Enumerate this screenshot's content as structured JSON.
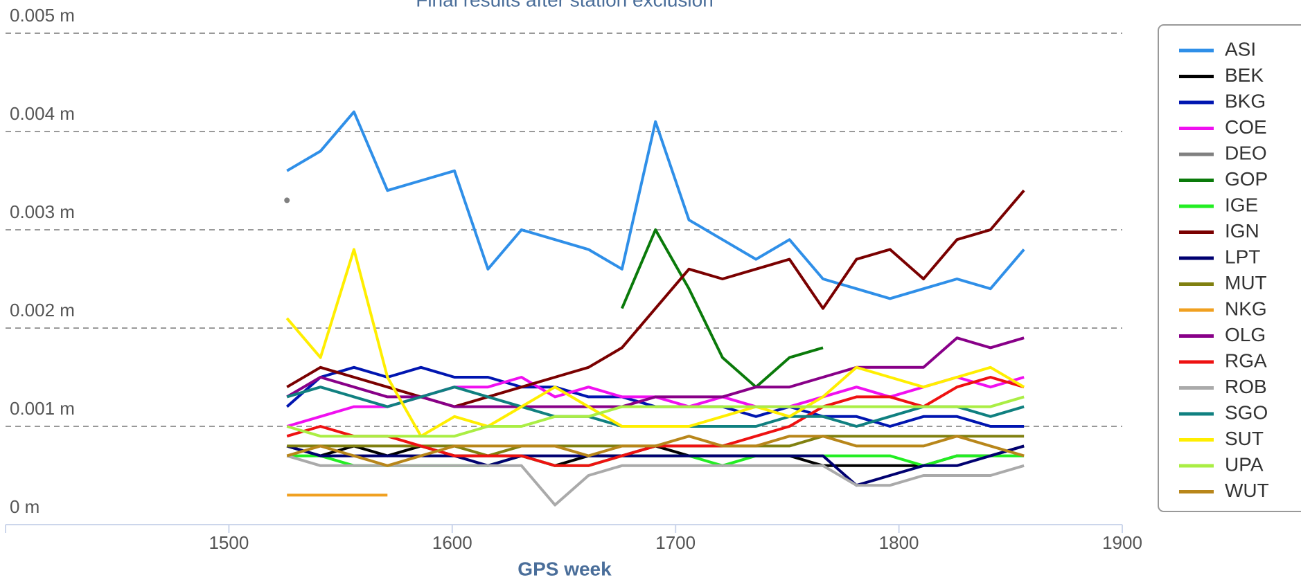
{
  "chart_data": {
    "type": "line",
    "title": "Final results after station exclusion",
    "x_label": "GPS week",
    "x": [
      1526,
      1541,
      1556,
      1571,
      1586,
      1601,
      1616,
      1631,
      1646,
      1661,
      1676,
      1691,
      1706,
      1721,
      1736,
      1751,
      1766,
      1781,
      1796,
      1811,
      1826,
      1841,
      1856
    ],
    "xlim": [
      1400,
      1900
    ],
    "xticks": [
      1500,
      1600,
      1700,
      1800,
      1900
    ],
    "ylim": [
      0,
      0.005
    ],
    "yticks": [
      {
        "value": 0,
        "label": "0 m"
      },
      {
        "value": 0.001,
        "label": "0.001 m"
      },
      {
        "value": 0.002,
        "label": "0.002 m"
      },
      {
        "value": 0.003,
        "label": "0.003 m"
      },
      {
        "value": 0.004,
        "label": "0.004 m"
      },
      {
        "value": 0.005,
        "label": "0.005 m"
      }
    ],
    "grid": true,
    "legend": "right",
    "series": [
      {
        "name": "ASI",
        "color": "#2f8fe8",
        "values": [
          0.0036,
          0.0038,
          0.0042,
          0.0034,
          0.0035,
          0.0036,
          0.0026,
          0.003,
          0.0029,
          0.0028,
          0.0026,
          0.0041,
          0.0031,
          0.0029,
          0.0027,
          0.0029,
          0.0025,
          0.0024,
          0.0023,
          0.0024,
          0.0025,
          0.0024,
          0.0028
        ]
      },
      {
        "name": "BEK",
        "color": "#000000",
        "values": [
          0.0008,
          0.0007,
          0.0008,
          0.0007,
          0.0008,
          0.0007,
          0.0007,
          0.0007,
          0.0006,
          0.0007,
          0.0007,
          0.0008,
          0.0007,
          0.0007,
          0.0007,
          0.0007,
          0.0006,
          0.0006,
          0.0006,
          0.0006,
          0.0007,
          0.0007,
          0.0008
        ]
      },
      {
        "name": "BKG",
        "color": "#0015b0",
        "values": [
          0.0012,
          0.0015,
          0.0016,
          0.0015,
          0.0016,
          0.0015,
          0.0015,
          0.0014,
          0.0014,
          0.0013,
          0.0013,
          0.0012,
          0.0012,
          0.0012,
          0.0011,
          0.0012,
          0.0011,
          0.0011,
          0.001,
          0.0011,
          0.0011,
          0.001,
          0.001
        ]
      },
      {
        "name": "COE",
        "color": "#f010f0",
        "values": [
          0.001,
          0.0011,
          0.0012,
          0.0012,
          0.0013,
          0.0014,
          0.0014,
          0.0015,
          0.0013,
          0.0014,
          0.0013,
          0.0013,
          0.0012,
          0.0013,
          0.0012,
          0.0012,
          0.0013,
          0.0014,
          0.0013,
          0.0014,
          0.0015,
          0.0014,
          0.0015
        ]
      },
      {
        "name": "DEO",
        "color": "#808080",
        "values": [
          0.0033,
          null,
          null,
          null,
          null,
          null,
          null,
          null,
          null,
          null,
          null,
          null,
          null,
          null,
          null,
          null,
          null,
          null,
          null,
          null,
          null,
          null,
          null
        ]
      },
      {
        "name": "GOP",
        "color": "#0a7a0a",
        "values": [
          null,
          null,
          null,
          null,
          null,
          null,
          null,
          null,
          null,
          null,
          0.0022,
          0.003,
          0.0024,
          0.0017,
          0.0014,
          0.0017,
          0.0018,
          null,
          null,
          null,
          null,
          null,
          null
        ]
      },
      {
        "name": "IGE",
        "color": "#22ee22",
        "values": [
          0.0007,
          0.0007,
          0.0006,
          0.0006,
          0.0006,
          0.0006,
          0.0006,
          0.0007,
          0.0006,
          0.0006,
          0.0007,
          0.0007,
          0.0007,
          0.0006,
          0.0007,
          0.0007,
          0.0007,
          0.0007,
          0.0007,
          0.0006,
          0.0007,
          0.0007,
          0.0007
        ]
      },
      {
        "name": "IGN",
        "color": "#7a0000",
        "values": [
          0.0014,
          0.0016,
          0.0015,
          0.0014,
          0.0013,
          0.0012,
          0.0013,
          0.0014,
          0.0015,
          0.0016,
          0.0018,
          0.0022,
          0.0026,
          0.0025,
          0.0026,
          0.0027,
          0.0022,
          0.0027,
          0.0028,
          0.0025,
          0.0029,
          0.003,
          0.0034
        ]
      },
      {
        "name": "LPT",
        "color": "#000070",
        "values": [
          0.0008,
          0.0007,
          0.0007,
          0.0007,
          0.0007,
          0.0007,
          0.0006,
          0.0007,
          0.0007,
          0.0007,
          0.0007,
          0.0007,
          0.0007,
          0.0007,
          0.0007,
          0.0007,
          0.0007,
          0.0004,
          0.0005,
          0.0006,
          0.0006,
          0.0007,
          0.0008
        ]
      },
      {
        "name": "MUT",
        "color": "#808010",
        "values": [
          0.0008,
          0.0008,
          0.0008,
          0.0008,
          0.0008,
          0.0008,
          0.0007,
          0.0008,
          0.0008,
          0.0008,
          0.0008,
          0.0008,
          0.0008,
          0.0008,
          0.0008,
          0.0008,
          0.0009,
          0.0009,
          0.0009,
          0.0009,
          0.0009,
          0.0009,
          0.0009
        ]
      },
      {
        "name": "NKG",
        "color": "#f0a020",
        "values": [
          0.0003,
          0.0003,
          0.0003,
          0.0003,
          null,
          null,
          null,
          null,
          null,
          null,
          null,
          null,
          null,
          null,
          null,
          null,
          null,
          null,
          null,
          null,
          null,
          null,
          null
        ]
      },
      {
        "name": "OLG",
        "color": "#880088",
        "values": [
          0.0013,
          0.0015,
          0.0014,
          0.0013,
          0.0013,
          0.0012,
          0.0012,
          0.0012,
          0.0012,
          0.0012,
          0.0012,
          0.0013,
          0.0013,
          0.0013,
          0.0014,
          0.0014,
          0.0015,
          0.0016,
          0.0016,
          0.0016,
          0.0019,
          0.0018,
          0.0019
        ]
      },
      {
        "name": "RGA",
        "color": "#ee1111",
        "values": [
          0.0009,
          0.001,
          0.0009,
          0.0009,
          0.0008,
          0.0007,
          0.0007,
          0.0007,
          0.0006,
          0.0006,
          0.0007,
          0.0008,
          0.0008,
          0.0008,
          0.0009,
          0.001,
          0.0012,
          0.0013,
          0.0013,
          0.0012,
          0.0014,
          0.0015,
          0.0014
        ]
      },
      {
        "name": "ROB",
        "color": "#aaaaaa",
        "values": [
          0.0007,
          0.0006,
          0.0006,
          0.0006,
          0.0006,
          0.0006,
          0.0006,
          0.0006,
          0.0002,
          0.0005,
          0.0006,
          0.0006,
          0.0006,
          0.0006,
          0.0006,
          0.0006,
          0.0006,
          0.0004,
          0.0004,
          0.0005,
          0.0005,
          0.0005,
          0.0006
        ]
      },
      {
        "name": "SGO",
        "color": "#108080",
        "values": [
          0.0013,
          0.0014,
          0.0013,
          0.0012,
          0.0013,
          0.0014,
          0.0013,
          0.0012,
          0.0011,
          0.0011,
          0.001,
          0.001,
          0.001,
          0.001,
          0.001,
          0.0011,
          0.0011,
          0.001,
          0.0011,
          0.0012,
          0.0012,
          0.0011,
          0.0012
        ]
      },
      {
        "name": "SUT",
        "color": "#ffee00",
        "values": [
          0.0021,
          0.0017,
          0.0028,
          0.0015,
          0.0009,
          0.0011,
          0.001,
          0.0012,
          0.0014,
          0.0012,
          0.001,
          0.001,
          0.001,
          0.0011,
          0.0012,
          0.0011,
          0.0013,
          0.0016,
          0.0015,
          0.0014,
          0.0015,
          0.0016,
          0.0014
        ]
      },
      {
        "name": "UPA",
        "color": "#aaee44",
        "values": [
          0.001,
          0.0009,
          0.0009,
          0.0009,
          0.0009,
          0.0009,
          0.001,
          0.001,
          0.0011,
          0.0011,
          0.0012,
          0.0012,
          0.0012,
          0.0012,
          0.0012,
          0.0012,
          0.0012,
          0.0012,
          0.0012,
          0.0012,
          0.0012,
          0.0012,
          0.0013
        ]
      },
      {
        "name": "WUT",
        "color": "#b8861a",
        "values": [
          0.0007,
          0.0008,
          0.0007,
          0.0006,
          0.0007,
          0.0008,
          0.0008,
          0.0008,
          0.0008,
          0.0007,
          0.0008,
          0.0008,
          0.0009,
          0.0008,
          0.0008,
          0.0009,
          0.0009,
          0.0008,
          0.0008,
          0.0008,
          0.0009,
          0.0008,
          0.0007
        ]
      }
    ]
  }
}
